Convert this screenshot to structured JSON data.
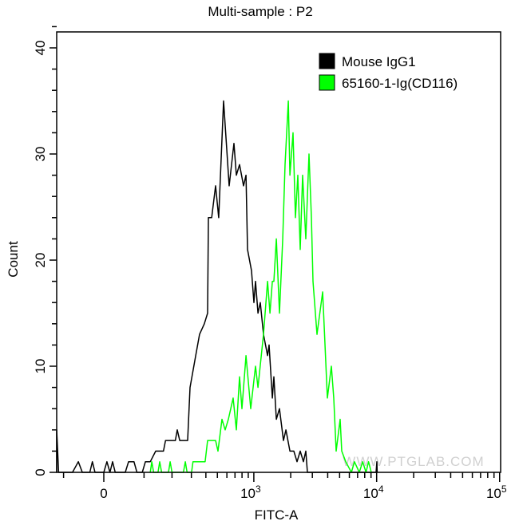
{
  "chart_data": {
    "type": "line",
    "title": "Multi-sample : P2",
    "xlabel": "FITC-A",
    "ylabel": "Count",
    "xscale": "biexponential",
    "xlim": [
      -121,
      100000
    ],
    "ylim": [
      0,
      44
    ],
    "x_major_ticks": [
      {
        "value": 0,
        "base": "0",
        "exp": ""
      },
      {
        "value": 1000,
        "base": "10",
        "exp": "3"
      },
      {
        "value": 10000,
        "base": "10",
        "exp": "4"
      },
      {
        "value": 100000,
        "base": "10",
        "exp": "5"
      }
    ],
    "y_ticks": [
      0,
      10,
      20,
      30,
      40
    ],
    "grid": false,
    "legend_position": "top-right",
    "series": [
      {
        "name": "Mouse IgG1",
        "color": "#000000",
        "points": [
          [
            -121,
            0
          ],
          [
            -121,
            4
          ],
          [
            -115,
            0
          ],
          [
            -75,
            0
          ],
          [
            -60,
            1
          ],
          [
            -50,
            0
          ],
          [
            -32,
            0
          ],
          [
            -26,
            1
          ],
          [
            -20,
            0
          ],
          [
            0,
            0
          ],
          [
            7,
            1
          ],
          [
            14,
            0
          ],
          [
            20,
            1
          ],
          [
            26,
            0
          ],
          [
            50,
            0
          ],
          [
            58,
            1
          ],
          [
            72,
            1
          ],
          [
            80,
            0
          ],
          [
            95,
            0
          ],
          [
            104,
            1
          ],
          [
            113,
            1
          ],
          [
            119,
            1
          ],
          [
            137,
            2
          ],
          [
            165,
            2
          ],
          [
            173,
            3
          ],
          [
            215,
            3
          ],
          [
            224,
            4
          ],
          [
            236,
            3
          ],
          [
            278,
            3
          ],
          [
            292,
            8
          ],
          [
            327,
            11
          ],
          [
            353,
            13
          ],
          [
            388,
            14
          ],
          [
            414,
            15
          ],
          [
            420,
            24
          ],
          [
            448,
            24
          ],
          [
            483,
            27
          ],
          [
            513,
            24
          ],
          [
            563,
            35
          ],
          [
            627,
            27
          ],
          [
            686,
            31
          ],
          [
            718,
            28
          ],
          [
            763,
            29
          ],
          [
            823,
            27
          ],
          [
            862,
            28
          ],
          [
            888,
            21
          ],
          [
            957,
            19
          ],
          [
            1002,
            16
          ],
          [
            1032,
            18
          ],
          [
            1081,
            15
          ],
          [
            1130,
            16
          ],
          [
            1200,
            13
          ],
          [
            1294,
            11
          ],
          [
            1333,
            12
          ],
          [
            1416,
            7
          ],
          [
            1459,
            9
          ],
          [
            1527,
            5
          ],
          [
            1620,
            6
          ],
          [
            1746,
            3
          ],
          [
            1827,
            4
          ],
          [
            1969,
            2
          ],
          [
            2121,
            2
          ],
          [
            2251,
            1
          ],
          [
            2391,
            2
          ],
          [
            2539,
            1
          ],
          [
            2656,
            2
          ],
          [
            2736,
            0
          ],
          [
            9900,
            0
          ],
          [
            10040,
            1
          ],
          [
            10100,
            0
          ]
        ]
      },
      {
        "name": "65160-1-Ig(CD116)",
        "color": "#00ff00",
        "points": [
          [
            119,
            0
          ],
          [
            124,
            1
          ],
          [
            130,
            0
          ],
          [
            145,
            0
          ],
          [
            151,
            1
          ],
          [
            158,
            0
          ],
          [
            185,
            0
          ],
          [
            192,
            1
          ],
          [
            200,
            0
          ],
          [
            255,
            0
          ],
          [
            265,
            1
          ],
          [
            275,
            0
          ],
          [
            301,
            0
          ],
          [
            310,
            1
          ],
          [
            394,
            1
          ],
          [
            414,
            3
          ],
          [
            483,
            3
          ],
          [
            506,
            2
          ],
          [
            546,
            5
          ],
          [
            581,
            4
          ],
          [
            617,
            5
          ],
          [
            676,
            7
          ],
          [
            718,
            4
          ],
          [
            763,
            9
          ],
          [
            799,
            6
          ],
          [
            862,
            11
          ],
          [
            943,
            6
          ],
          [
            1032,
            10
          ],
          [
            1081,
            8
          ],
          [
            1200,
            13
          ],
          [
            1294,
            18
          ],
          [
            1354,
            15
          ],
          [
            1416,
            18
          ],
          [
            1459,
            18
          ],
          [
            1527,
            22
          ],
          [
            1620,
            15
          ],
          [
            1721,
            22
          ],
          [
            1799,
            29
          ],
          [
            1911,
            35
          ],
          [
            1969,
            28
          ],
          [
            2090,
            32
          ],
          [
            2184,
            24
          ],
          [
            2286,
            28
          ],
          [
            2391,
            21
          ],
          [
            2501,
            28
          ],
          [
            2656,
            22
          ],
          [
            2819,
            30
          ],
          [
            2948,
            24
          ],
          [
            3037,
            18
          ],
          [
            3273,
            13
          ],
          [
            3637,
            17
          ],
          [
            3976,
            7
          ],
          [
            4285,
            10
          ],
          [
            4479,
            7
          ],
          [
            4686,
            2
          ],
          [
            5053,
            5
          ],
          [
            5202,
            2
          ],
          [
            5607,
            1
          ],
          [
            6230,
            0
          ],
          [
            6600,
            1
          ],
          [
            7230,
            0
          ],
          [
            7700,
            1
          ],
          [
            8200,
            0
          ],
          [
            8600,
            1
          ],
          [
            9040,
            0
          ]
        ]
      }
    ],
    "watermark": "WWW.PTGLAB.COM"
  }
}
